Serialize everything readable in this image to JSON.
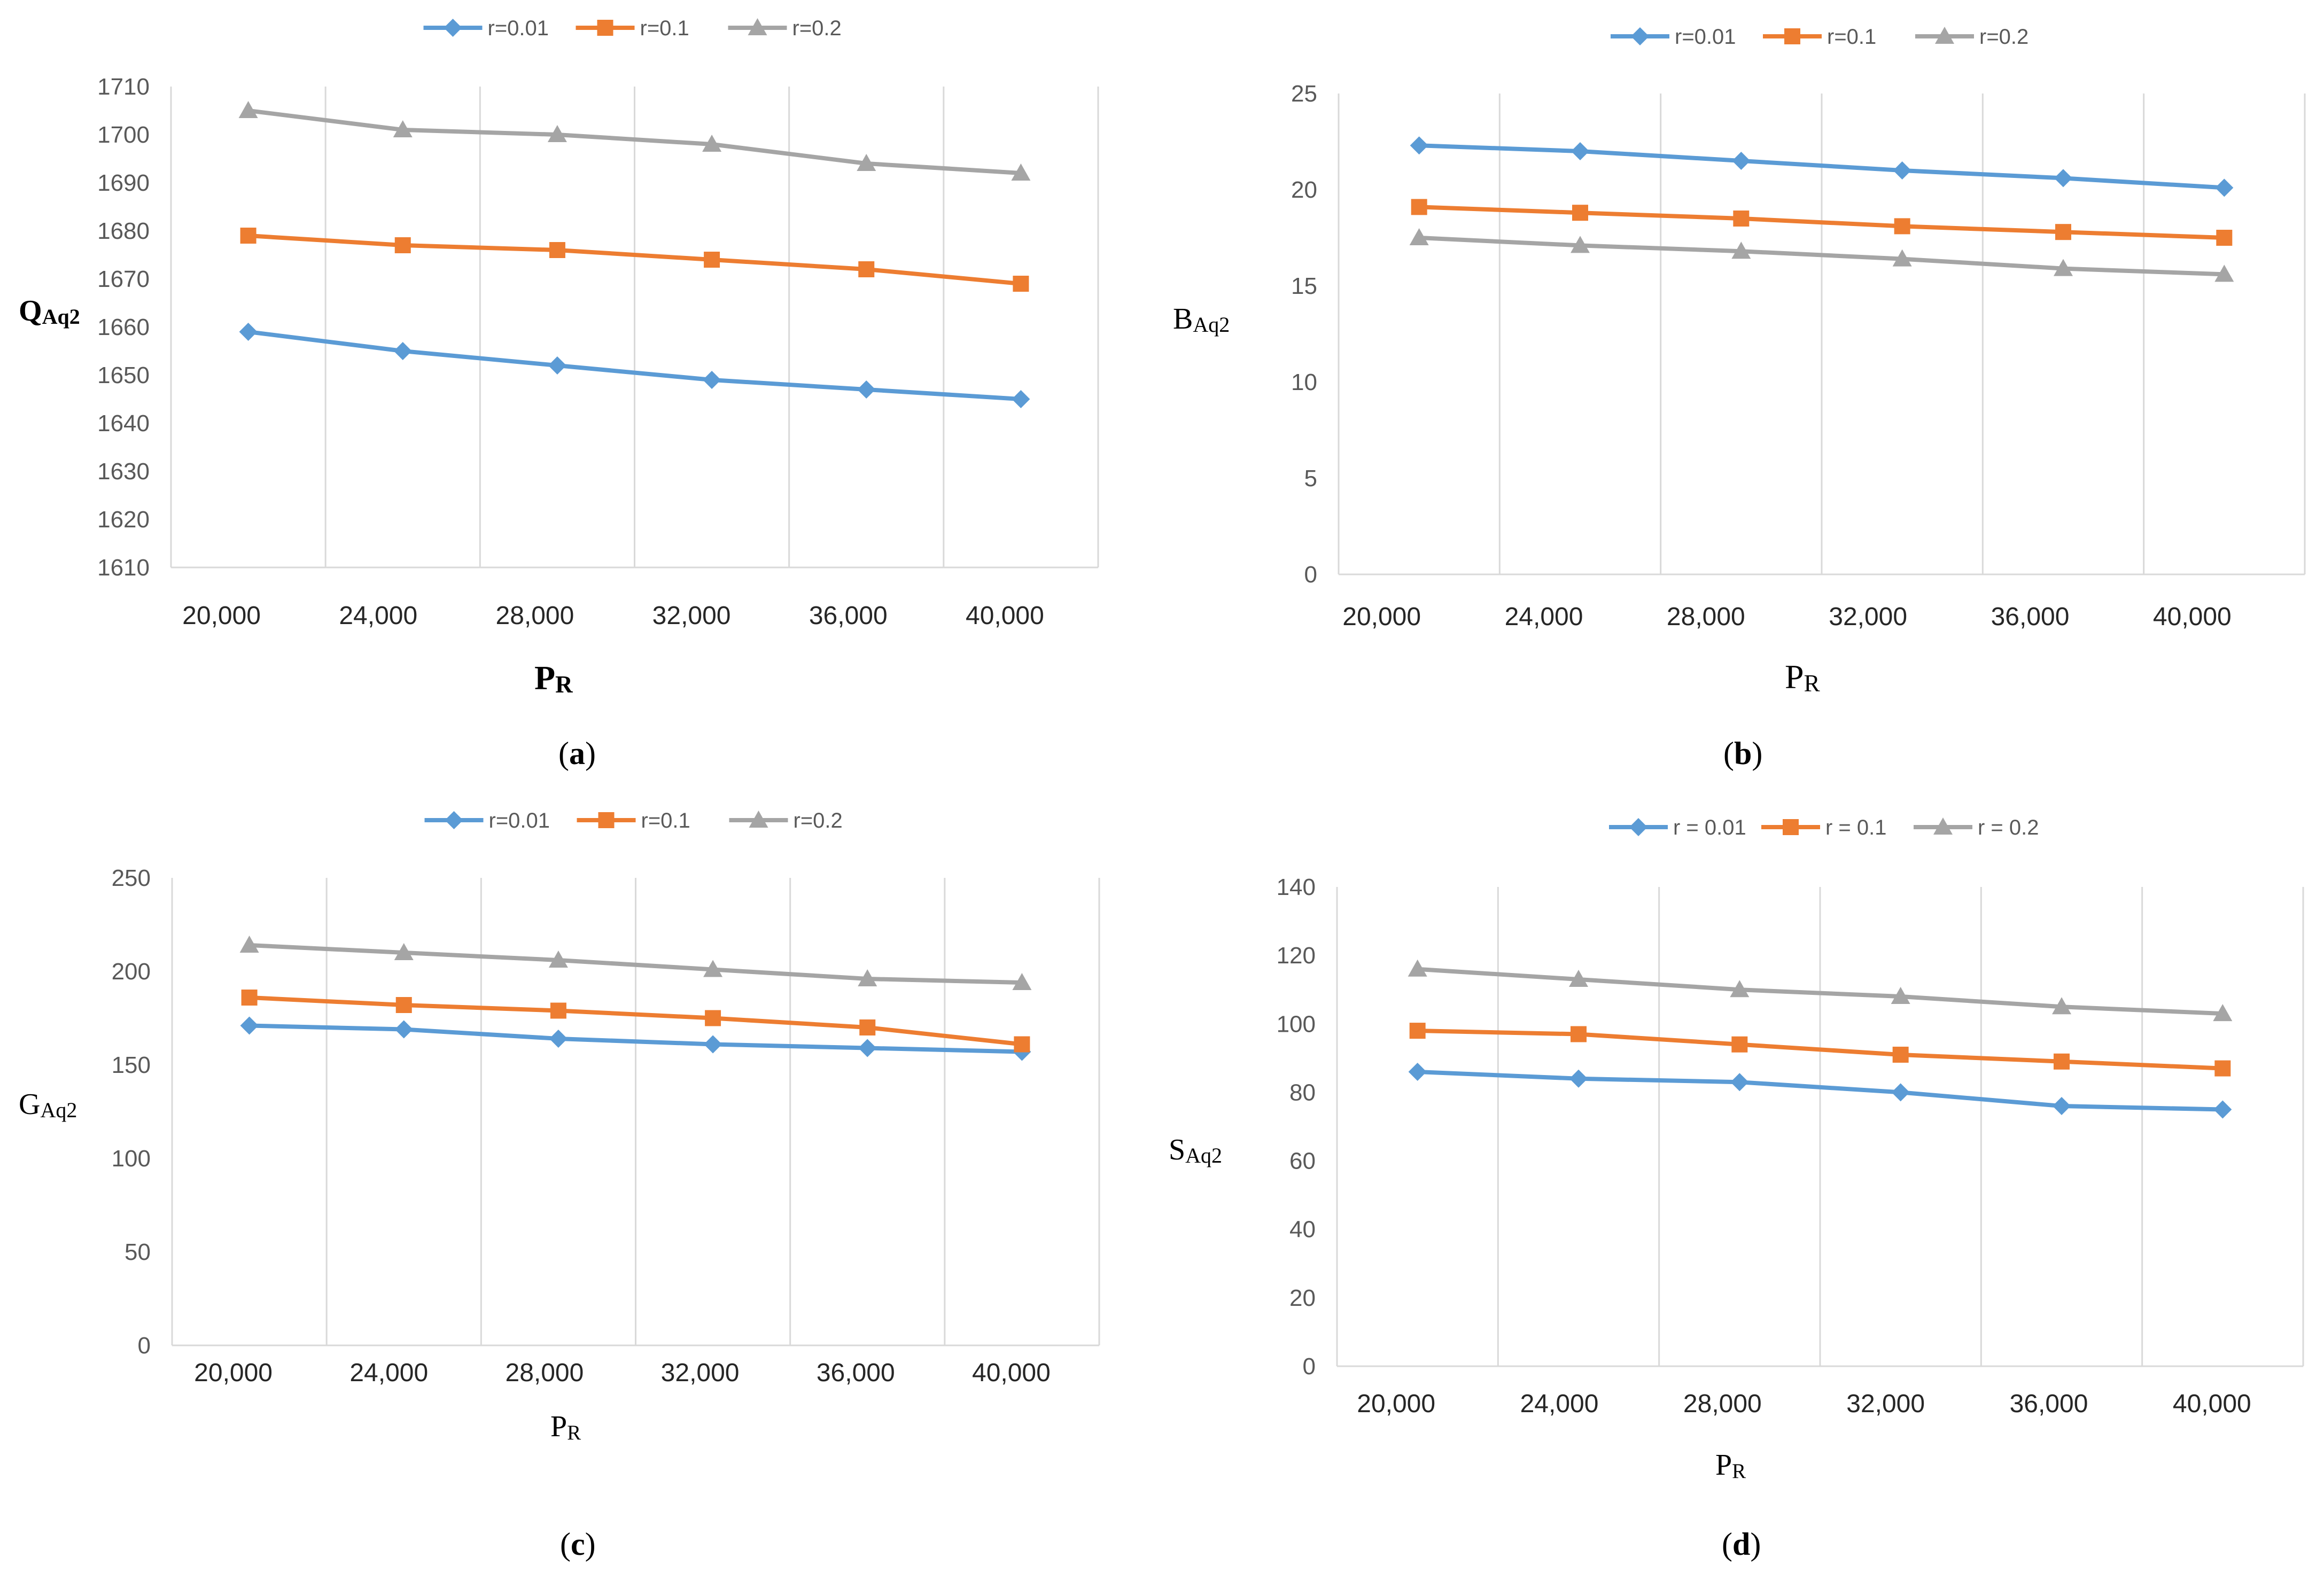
{
  "colors": {
    "r001": "#5b9bd5",
    "r01": "#ed7d31",
    "r02": "#a5a5a5",
    "grid": "#d9d9d9"
  },
  "chart_data": [
    {
      "type": "line",
      "caption": "a",
      "title": "",
      "xlabel": {
        "main": "P",
        "sub": "R"
      },
      "ylabel": {
        "main": "Q",
        "sub": "Aq2"
      },
      "categories": [
        "20,000",
        "24,000",
        "28,000",
        "32,000",
        "36,000",
        "40,000"
      ],
      "ylim": [
        1610,
        1710
      ],
      "yticks": [
        1610,
        1620,
        1630,
        1640,
        1650,
        1660,
        1670,
        1680,
        1690,
        1700,
        1710
      ],
      "legend_position": "top-center",
      "grid": "vertical",
      "series": [
        {
          "name": "r=0.01",
          "values": [
            1659,
            1655,
            1652,
            1649,
            1647,
            1645
          ]
        },
        {
          "name": "r=0.1",
          "values": [
            1679,
            1677,
            1676,
            1674,
            1672,
            1669
          ]
        },
        {
          "name": "r=0.2",
          "values": [
            1705,
            1701,
            1700,
            1698,
            1694,
            1692
          ]
        }
      ]
    },
    {
      "type": "line",
      "caption": "b",
      "title": "",
      "xlabel": {
        "main": "P",
        "sub": "R"
      },
      "ylabel": {
        "main": "B",
        "sub": "Aq2"
      },
      "categories": [
        "20,000",
        "24,000",
        "28,000",
        "32,000",
        "36,000",
        "40,000"
      ],
      "ylim": [
        0,
        25
      ],
      "yticks": [
        0,
        5,
        10,
        15,
        20,
        25
      ],
      "legend_position": "top-center",
      "grid": "vertical",
      "series": [
        {
          "name": "r=0.01",
          "values": [
            22.3,
            22.0,
            21.5,
            21.0,
            20.6,
            20.1
          ]
        },
        {
          "name": "r=0.1",
          "values": [
            19.1,
            18.8,
            18.5,
            18.1,
            17.8,
            17.5
          ]
        },
        {
          "name": "r=0.2",
          "values": [
            17.5,
            17.1,
            16.8,
            16.4,
            15.9,
            15.6
          ]
        }
      ]
    },
    {
      "type": "line",
      "caption": "c",
      "title": "",
      "xlabel": {
        "main": "P",
        "sub": "R"
      },
      "ylabel": {
        "main": "G",
        "sub": "Aq2"
      },
      "categories": [
        "20,000",
        "24,000",
        "28,000",
        "32,000",
        "36,000",
        "40,000"
      ],
      "ylim": [
        0,
        250
      ],
      "yticks": [
        0,
        50,
        100,
        150,
        200,
        250
      ],
      "legend_position": "top-center",
      "grid": "vertical",
      "series": [
        {
          "name": "r=0.01",
          "values": [
            171,
            169,
            164,
            161,
            159,
            157
          ]
        },
        {
          "name": "r=0.1",
          "values": [
            186,
            182,
            179,
            175,
            170,
            161
          ]
        },
        {
          "name": "r=0.2",
          "values": [
            214,
            210,
            206,
            201,
            196,
            194
          ]
        }
      ]
    },
    {
      "type": "line",
      "caption": "d",
      "title": "",
      "xlabel": {
        "main": "P",
        "sub": "R"
      },
      "ylabel": {
        "main": "S",
        "sub": "Aq2"
      },
      "categories": [
        "20,000",
        "24,000",
        "28,000",
        "32,000",
        "36,000",
        "40,000"
      ],
      "ylim": [
        0,
        140
      ],
      "yticks": [
        0,
        20,
        40,
        60,
        80,
        100,
        120,
        140
      ],
      "legend_position": "top-center",
      "grid": "vertical",
      "series": [
        {
          "name": "r = 0.01",
          "values": [
            86,
            84,
            83,
            80,
            76,
            75
          ]
        },
        {
          "name": "r = 0.1",
          "values": [
            98,
            97,
            94,
            91,
            89,
            87
          ]
        },
        {
          "name": "r = 0.2",
          "values": [
            116,
            113,
            110,
            108,
            105,
            103
          ]
        }
      ]
    }
  ]
}
